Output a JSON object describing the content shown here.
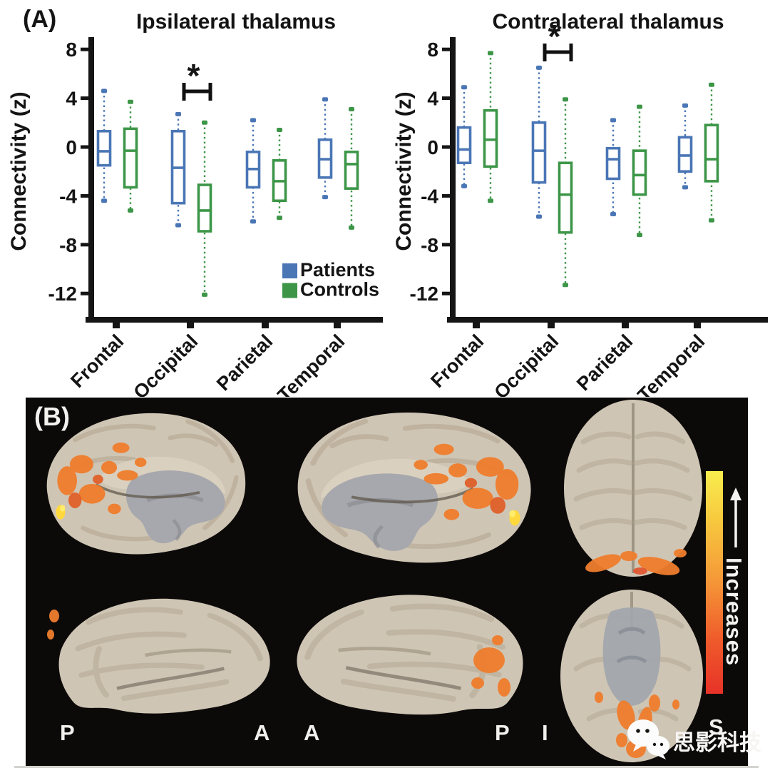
{
  "figure": {
    "panelA_label": "(A)",
    "panelB_label": "(B)"
  },
  "chart_data": [
    {
      "type": "boxplot",
      "title": "Ipsilateral thalamus",
      "ylabel": "Connectivity (z)",
      "categories": [
        "Frontal",
        "Occipital",
        "Parietal",
        "Temporal"
      ],
      "yticks": [
        8,
        4,
        0,
        -4,
        -8,
        -12
      ],
      "ylim": [
        -14.5,
        9.5
      ],
      "grid": false,
      "legend_visible": true,
      "legend_position": "lower right",
      "significance": {
        "category": "Occipital",
        "symbol": "*"
      },
      "series": [
        {
          "name": "Patients",
          "color": "#4a76b5",
          "boxes": [
            {
              "lo": -4.4,
              "q1": -1.5,
              "med": -0.35,
              "q3": 1.3,
              "hi": 4.6
            },
            {
              "lo": -6.4,
              "q1": -4.6,
              "med": -1.7,
              "q3": 1.3,
              "hi": 2.7
            },
            {
              "lo": -6.1,
              "q1": -3.3,
              "med": -1.8,
              "q3": -0.4,
              "hi": 2.2
            },
            {
              "lo": -4.1,
              "q1": -2.5,
              "med": -1.0,
              "q3": 0.6,
              "hi": 3.9
            }
          ]
        },
        {
          "name": "Controls",
          "color": "#3d9648",
          "boxes": [
            {
              "lo": -5.2,
              "q1": -3.3,
              "med": -0.3,
              "q3": 1.5,
              "hi": 3.7
            },
            {
              "lo": -12.1,
              "q1": -6.9,
              "med": -5.2,
              "q3": -3.1,
              "hi": 2.0
            },
            {
              "lo": -5.8,
              "q1": -4.4,
              "med": -2.8,
              "q3": -1.1,
              "hi": 1.4
            },
            {
              "lo": -6.6,
              "q1": -3.4,
              "med": -1.4,
              "q3": -0.4,
              "hi": 3.1
            }
          ]
        }
      ]
    },
    {
      "type": "boxplot",
      "title": "Contralateral thalamus",
      "ylabel": "Connectivity (z)",
      "categories": [
        "Frontal",
        "Occipital",
        "Parietal",
        "Temporal"
      ],
      "yticks": [
        8,
        4,
        0,
        -4,
        -8,
        -12
      ],
      "ylim": [
        -14.5,
        9.5
      ],
      "grid": false,
      "legend_visible": false,
      "significance": {
        "category": "Occipital",
        "symbol": "*"
      },
      "series": [
        {
          "name": "Patients",
          "color": "#4a76b5",
          "boxes": [
            {
              "lo": -3.2,
              "q1": -1.3,
              "med": -0.2,
              "q3": 1.6,
              "hi": 4.9
            },
            {
              "lo": -5.7,
              "q1": -2.9,
              "med": -0.3,
              "q3": 2.0,
              "hi": 6.5
            },
            {
              "lo": -5.5,
              "q1": -2.6,
              "med": -1.0,
              "q3": -0.1,
              "hi": 2.2
            },
            {
              "lo": -3.3,
              "q1": -2.0,
              "med": -0.7,
              "q3": 0.8,
              "hi": 3.4
            }
          ]
        },
        {
          "name": "Controls",
          "color": "#3d9648",
          "boxes": [
            {
              "lo": -4.4,
              "q1": -1.6,
              "med": 0.6,
              "q3": 3.0,
              "hi": 7.7
            },
            {
              "lo": -11.3,
              "q1": -7.0,
              "med": -3.9,
              "q3": -1.3,
              "hi": 3.9
            },
            {
              "lo": -7.2,
              "q1": -3.9,
              "med": -2.3,
              "q3": -0.3,
              "hi": 3.3
            },
            {
              "lo": -6.0,
              "q1": -2.8,
              "med": -1.0,
              "q3": 1.8,
              "hi": 5.1
            }
          ]
        }
      ]
    }
  ],
  "panelB": {
    "views": [
      "medial-left",
      "medial-right",
      "superior-axial",
      "lateral-left",
      "lateral-right",
      "inferior-axial"
    ],
    "orientation_labels": [
      "P",
      "A",
      "A",
      "P",
      "I",
      "S"
    ],
    "colorbar": {
      "label": "Increases",
      "arrow_icon": "up-arrow-icon",
      "top_color": "#f9ed4e",
      "mid_color": "#f59a38",
      "bottom_color": "#e73228"
    },
    "activation_color": "#ef7d2d",
    "brain_color": "#cfc5b4",
    "background_color": "#0c0a09",
    "watermark": {
      "icon": "wechat-icon",
      "text": "思影科技"
    }
  }
}
